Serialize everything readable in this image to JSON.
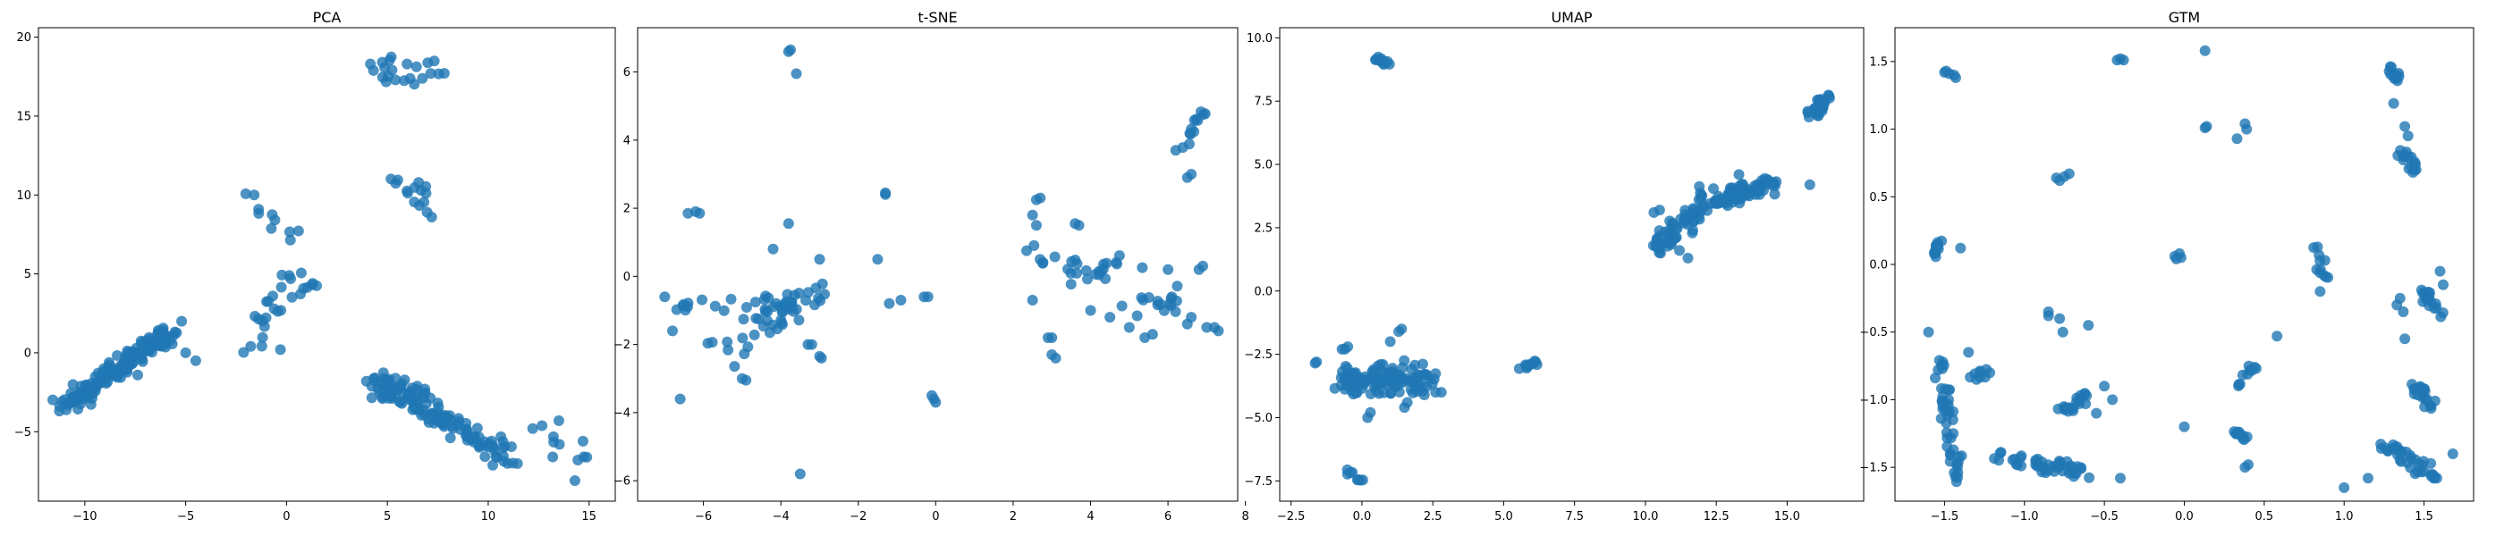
{
  "figure": {
    "marker_color": "#1f77b4",
    "marker_alpha": 0.8
  },
  "chart_data": [
    {
      "type": "scatter",
      "title": "PCA",
      "xlim": [
        -12.3,
        16.3
      ],
      "ylim": [
        -9.4,
        20.6
      ],
      "xticks": [
        -10,
        -5,
        0,
        5,
        10,
        15
      ],
      "yticks": [
        -5,
        0,
        5,
        10,
        15,
        20
      ],
      "xticklabels": [
        "−10",
        "−5",
        "0",
        "5",
        "10",
        "15"
      ],
      "yticklabels": [
        "−5",
        "0",
        "5",
        "10",
        "15",
        "20"
      ],
      "clusters": [
        {
          "x": [
            -11.0,
            -5.5
          ],
          "y": [
            -3.3,
            1.5
          ],
          "n": 160,
          "spread": 0.5
        },
        {
          "x": [
            -2.2,
            0.0
          ],
          "y": [
            -0.1,
            5.0
          ],
          "n": 20,
          "spread": 0.7
        },
        {
          "x": [
            -2.0,
            0.4
          ],
          "y": [
            10.0,
            7.0
          ],
          "n": 10,
          "spread": 0.4
        },
        {
          "x": [
            0.2,
            1.6
          ],
          "y": [
            3.6,
            4.3
          ],
          "n": 6,
          "spread": 0.2
        },
        {
          "x": [
            4.0,
            7.0
          ],
          "y": [
            -1.8,
            -2.5
          ],
          "n": 20,
          "spread": 0.5
        },
        {
          "x": [
            4.5,
            7.5
          ],
          "y": [
            18.0,
            17.5
          ],
          "n": 22,
          "spread": 0.8
        },
        {
          "x": [
            5.5,
            7.5
          ],
          "y": [
            11.0,
            9.0
          ],
          "n": 15,
          "spread": 0.8
        },
        {
          "x": [
            4.5,
            11.0
          ],
          "y": [
            -2.0,
            -6.5
          ],
          "n": 120,
          "spread": 0.6
        },
        {
          "x": [
            12.5,
            15.0
          ],
          "y": [
            -4.5,
            -7.0
          ],
          "n": 8,
          "spread": 0.5
        }
      ],
      "points": [
        [
          -5.0,
          0.0
        ],
        [
          -4.5,
          -0.5
        ],
        [
          -5.2,
          2.0
        ],
        [
          -6.5,
          0.5
        ],
        [
          -0.3,
          0.2
        ],
        [
          1.3,
          4.4
        ],
        [
          13.5,
          -4.3
        ],
        [
          14.7,
          -5.6
        ],
        [
          14.3,
          -8.1
        ],
        [
          13.2,
          -6.6
        ]
      ]
    },
    {
      "type": "scatter",
      "title": "t-SNE",
      "xlim": [
        -7.7,
        7.8
      ],
      "ylim": [
        -6.6,
        7.3
      ],
      "xticks": [
        -6,
        -4,
        -2,
        0,
        2,
        4,
        6,
        8
      ],
      "yticks": [
        -6,
        -4,
        -2,
        0,
        2,
        4,
        6
      ],
      "xticklabels": [
        "−6",
        "−4",
        "−2",
        "0",
        "2",
        "4",
        "6",
        "8"
      ],
      "yticklabels": [
        "−6",
        "−4",
        "−2",
        "0",
        "2",
        "4",
        "6"
      ],
      "clusters": [
        {
          "x": [
            -6.8,
            -5.5
          ],
          "y": [
            -0.9,
            -0.8
          ],
          "n": 10,
          "spread": 0.2
        },
        {
          "x": [
            -5.5,
            -3.5
          ],
          "y": [
            -2.1,
            -0.6
          ],
          "n": 40,
          "spread": 0.5
        },
        {
          "x": [
            -4.0,
            -3.0
          ],
          "y": [
            -1.0,
            -0.5
          ],
          "n": 15,
          "spread": 0.4
        },
        {
          "x": [
            2.5,
            4.5
          ],
          "y": [
            0.8,
            -0.2
          ],
          "n": 15,
          "spread": 0.3
        },
        {
          "x": [
            3.5,
            5.0
          ],
          "y": [
            -0.3,
            0.6
          ],
          "n": 12,
          "spread": 0.3
        },
        {
          "x": [
            5.0,
            6.5
          ],
          "y": [
            -1.2,
            -0.5
          ],
          "n": 15,
          "spread": 0.4
        },
        {
          "x": [
            6.3,
            7.0
          ],
          "y": [
            3.6,
            5.0
          ],
          "n": 12,
          "spread": 0.1
        }
      ],
      "points": [
        [
          -3.8,
          6.6
        ],
        [
          -3.75,
          6.65
        ],
        [
          -3.6,
          5.95
        ],
        [
          -3.5,
          -5.8
        ],
        [
          -6.2,
          1.9
        ],
        [
          -6.4,
          1.85
        ],
        [
          -6.1,
          1.85
        ],
        [
          -6.8,
          -1.6
        ],
        [
          -7.0,
          -0.6
        ],
        [
          -6.6,
          -3.6
        ],
        [
          -5.0,
          -3.0
        ],
        [
          -4.9,
          -3.05
        ],
        [
          -4.2,
          0.8
        ],
        [
          -3.8,
          1.55
        ],
        [
          -3.3,
          -2.0
        ],
        [
          -3.2,
          -2.0
        ],
        [
          -3.0,
          -2.35
        ],
        [
          -2.95,
          -2.4
        ],
        [
          -3.0,
          0.5
        ],
        [
          -1.3,
          2.45
        ],
        [
          -1.3,
          2.4
        ],
        [
          -1.5,
          0.5
        ],
        [
          -1.2,
          -0.8
        ],
        [
          -0.9,
          -0.7
        ],
        [
          -0.3,
          -0.6
        ],
        [
          -0.2,
          -0.6
        ],
        [
          -0.1,
          -3.5
        ],
        [
          0.0,
          -3.7
        ],
        [
          -0.05,
          -3.6
        ],
        [
          2.5,
          -0.7
        ],
        [
          2.6,
          1.5
        ],
        [
          2.7,
          2.3
        ],
        [
          2.6,
          2.25
        ],
        [
          2.5,
          1.8
        ],
        [
          3.0,
          -2.3
        ],
        [
          3.1,
          -2.4
        ],
        [
          3.0,
          -1.8
        ],
        [
          2.9,
          -1.8
        ],
        [
          3.7,
          1.5
        ],
        [
          3.6,
          1.55
        ],
        [
          4.5,
          -1.2
        ],
        [
          4.0,
          -1.0
        ],
        [
          5.0,
          -1.5
        ],
        [
          5.6,
          -1.7
        ],
        [
          5.4,
          -1.8
        ],
        [
          6.0,
          0.2
        ],
        [
          6.1,
          -0.6
        ],
        [
          6.9,
          0.3
        ],
        [
          6.8,
          0.2
        ],
        [
          6.5,
          -1.4
        ],
        [
          6.6,
          -1.2
        ],
        [
          7.0,
          -1.5
        ],
        [
          7.3,
          -1.6
        ],
        [
          7.2,
          -1.5
        ],
        [
          6.2,
          3.7
        ],
        [
          6.6,
          3.0
        ],
        [
          6.5,
          2.9
        ]
      ]
    },
    {
      "type": "scatter",
      "title": "UMAP",
      "xlim": [
        -2.9,
        17.7
      ],
      "ylim": [
        -8.3,
        10.4
      ],
      "xticks": [
        -2.5,
        0.0,
        2.5,
        5.0,
        7.5,
        10.0,
        12.5,
        15.0
      ],
      "yticks": [
        -7.5,
        -5.0,
        -2.5,
        0.0,
        2.5,
        5.0,
        7.5,
        10.0
      ],
      "xticklabels": [
        "−2.5",
        "0.0",
        "2.5",
        "5.0",
        "7.5",
        "10.0",
        "12.5",
        "15.0"
      ],
      "yticklabels": [
        "−7.5",
        "−5.0",
        "−2.5",
        "0.0",
        "2.5",
        "5.0",
        "7.5",
        "10.0"
      ],
      "clusters": [
        {
          "x": [
            -0.5,
            2.2
          ],
          "y": [
            -3.5,
            -3.5
          ],
          "n": 120,
          "spread": 0.5
        },
        {
          "x": [
            0.5,
            1.0
          ],
          "y": [
            9.2,
            8.9
          ],
          "n": 12,
          "spread": 0.12
        },
        {
          "x": [
            -0.5,
            0.0
          ],
          "y": [
            -7.2,
            -7.4
          ],
          "n": 8,
          "spread": 0.1
        },
        {
          "x": [
            5.5,
            6.2
          ],
          "y": [
            -3.1,
            -2.8
          ],
          "n": 10,
          "spread": 0.12
        },
        {
          "x": [
            10.5,
            12.5
          ],
          "y": [
            1.8,
            3.8
          ],
          "n": 70,
          "spread": 0.4
        },
        {
          "x": [
            12.5,
            14.5
          ],
          "y": [
            3.5,
            4.3
          ],
          "n": 70,
          "spread": 0.3
        },
        {
          "x": [
            15.8,
            16.5
          ],
          "y": [
            6.8,
            7.8
          ],
          "n": 25,
          "spread": 0.2
        }
      ],
      "points": [
        [
          -1.6,
          -2.8
        ],
        [
          -1.65,
          -2.85
        ],
        [
          -0.6,
          -2.3
        ],
        [
          -0.5,
          -2.2
        ],
        [
          -0.7,
          -2.3
        ],
        [
          1.3,
          -1.6
        ],
        [
          1.4,
          -1.5
        ],
        [
          1.0,
          -2.0
        ],
        [
          2.2,
          -4.1
        ],
        [
          2.6,
          -4.0
        ],
        [
          2.8,
          -4.0
        ],
        [
          0.2,
          -5.0
        ],
        [
          0.3,
          -4.8
        ],
        [
          1.5,
          -4.6
        ],
        [
          1.6,
          -4.4
        ],
        [
          11.5,
          1.3
        ],
        [
          11.2,
          1.6
        ],
        [
          10.5,
          3.2
        ],
        [
          10.3,
          3.1
        ],
        [
          13.3,
          4.6
        ],
        [
          15.8,
          4.2
        ]
      ]
    },
    {
      "type": "scatter",
      "title": "GTM",
      "xlim": [
        -1.81,
        1.81
      ],
      "ylim": [
        -1.75,
        1.75
      ],
      "xticks": [
        -1.5,
        -1.0,
        -0.5,
        0.0,
        0.5,
        1.0,
        1.5
      ],
      "yticks": [
        -1.5,
        -1.0,
        -0.5,
        0.0,
        0.5,
        1.0,
        1.5
      ],
      "xticklabels": [
        "−1.5",
        "−1.0",
        "−0.5",
        "0.0",
        "0.5",
        "1.0",
        "1.5"
      ],
      "yticklabels": [
        "−1.5",
        "−1.0",
        "−0.5",
        "0.0",
        "0.5",
        "1.0",
        "1.5"
      ],
      "clusters": [
        {
          "x": [
            -1.56,
            -1.54
          ],
          "y": [
            0.05,
            0.2
          ],
          "n": 12,
          "spread": 0.02
        },
        {
          "x": [
            -1.55,
            -1.4
          ],
          "y": [
            -0.6,
            -1.6
          ],
          "n": 45,
          "spread": 0.05
        },
        {
          "x": [
            -1.35,
            -1.2
          ],
          "y": [
            -0.85,
            -0.8
          ],
          "n": 8,
          "spread": 0.03
        },
        {
          "x": [
            -1.2,
            -0.6
          ],
          "y": [
            -1.4,
            -1.55
          ],
          "n": 45,
          "spread": 0.05
        },
        {
          "x": [
            -0.75,
            -0.6
          ],
          "y": [
            -1.1,
            -0.95
          ],
          "n": 20,
          "spread": 0.04
        },
        {
          "x": [
            0.3,
            0.4
          ],
          "y": [
            -1.25,
            -1.3
          ],
          "n": 10,
          "spread": 0.03
        },
        {
          "x": [
            0.35,
            0.45
          ],
          "y": [
            -0.9,
            -0.75
          ],
          "n": 10,
          "spread": 0.04
        },
        {
          "x": [
            0.83,
            0.9
          ],
          "y": [
            0.15,
            -0.2
          ],
          "n": 10,
          "spread": 0.03
        },
        {
          "x": [
            1.28,
            1.35
          ],
          "y": [
            1.45,
            1.35
          ],
          "n": 12,
          "spread": 0.02
        },
        {
          "x": [
            1.35,
            1.45
          ],
          "y": [
            0.85,
            0.7
          ],
          "n": 15,
          "spread": 0.03
        },
        {
          "x": [
            1.25,
            1.5
          ],
          "y": [
            -1.35,
            -1.5
          ],
          "n": 30,
          "spread": 0.05
        },
        {
          "x": [
            1.45,
            1.55
          ],
          "y": [
            -0.9,
            -1.05
          ],
          "n": 20,
          "spread": 0.03
        },
        {
          "x": [
            1.5,
            1.6
          ],
          "y": [
            -0.2,
            -0.35
          ],
          "n": 20,
          "spread": 0.04
        },
        {
          "x": [
            1.52,
            1.58
          ],
          "y": [
            -1.55,
            -1.58
          ],
          "n": 8,
          "spread": 0.02
        }
      ],
      "points": [
        [
          -1.5,
          1.42
        ],
        [
          -1.47,
          1.41
        ],
        [
          -1.44,
          1.4
        ],
        [
          -1.43,
          1.38
        ],
        [
          -1.49,
          1.43
        ],
        [
          -0.42,
          1.51
        ],
        [
          -0.4,
          1.52
        ],
        [
          -0.38,
          1.51
        ],
        [
          0.13,
          1.58
        ],
        [
          -0.8,
          0.64
        ],
        [
          -0.75,
          0.65
        ],
        [
          -0.72,
          0.67
        ],
        [
          -0.78,
          0.62
        ],
        [
          -0.06,
          0.06
        ],
        [
          -0.03,
          0.08
        ],
        [
          -0.02,
          0.05
        ],
        [
          -0.05,
          0.04
        ],
        [
          0.14,
          1.02
        ],
        [
          0.13,
          1.01
        ],
        [
          0.33,
          0.93
        ],
        [
          0.38,
          1.04
        ],
        [
          0.39,
          1.0
        ],
        [
          -0.85,
          -0.35
        ],
        [
          -0.78,
          -0.4
        ],
        [
          -0.76,
          -0.5
        ],
        [
          -0.6,
          -0.45
        ],
        [
          -0.85,
          -0.38
        ],
        [
          -0.5,
          -0.9
        ],
        [
          -0.45,
          -1.0
        ],
        [
          -0.55,
          -1.1
        ],
        [
          -1.6,
          -0.5
        ],
        [
          -1.4,
          0.12
        ],
        [
          -1.35,
          -0.65
        ],
        [
          -1.3,
          -0.85
        ],
        [
          0.0,
          -1.2
        ],
        [
          -0.4,
          -1.58
        ],
        [
          0.38,
          -1.5
        ],
        [
          0.4,
          -1.48
        ],
        [
          0.58,
          -0.53
        ],
        [
          0.88,
          0.03
        ],
        [
          0.85,
          -0.2
        ],
        [
          1.0,
          -1.65
        ],
        [
          1.15,
          -1.58
        ],
        [
          1.32,
          1.4
        ],
        [
          1.31,
          1.19
        ],
        [
          1.38,
          1.02
        ],
        [
          1.4,
          0.95
        ],
        [
          1.45,
          0.7
        ],
        [
          1.43,
          0.68
        ],
        [
          1.37,
          -0.35
        ],
        [
          1.33,
          -0.3
        ],
        [
          1.38,
          -0.55
        ],
        [
          1.35,
          -0.25
        ],
        [
          1.6,
          -0.05
        ],
        [
          1.62,
          -0.15
        ],
        [
          1.55,
          -1.55
        ],
        [
          1.58,
          -1.58
        ],
        [
          1.68,
          -1.4
        ]
      ]
    }
  ]
}
